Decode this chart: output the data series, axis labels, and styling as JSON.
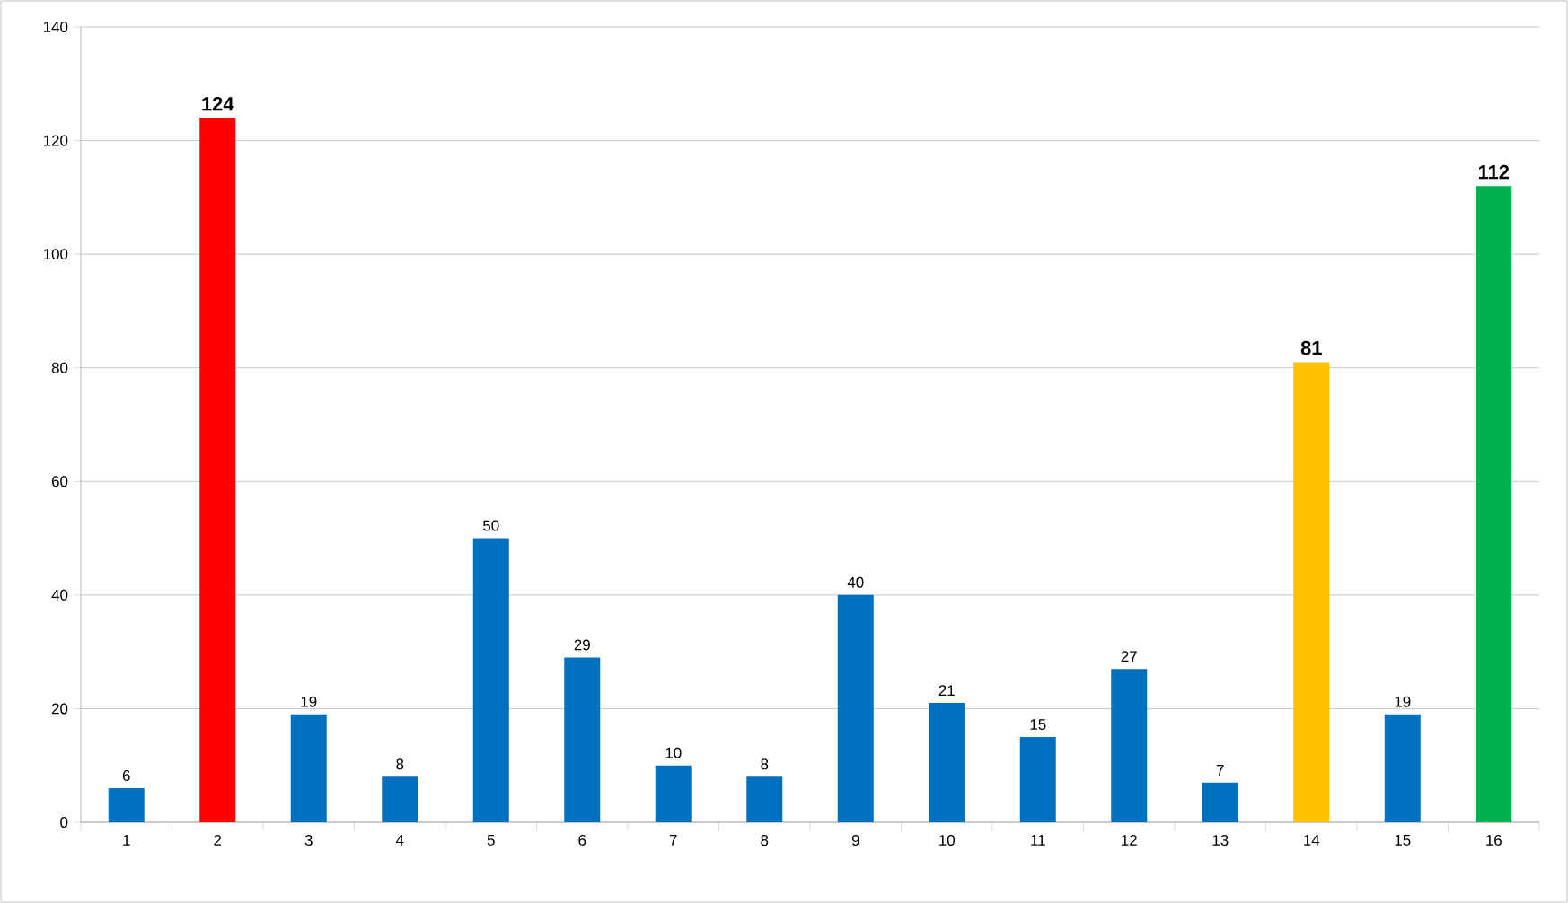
{
  "chart_data": {
    "type": "bar",
    "categories": [
      "1",
      "2",
      "3",
      "4",
      "5",
      "6",
      "7",
      "8",
      "9",
      "10",
      "11",
      "12",
      "13",
      "14",
      "15",
      "16"
    ],
    "values": [
      6,
      124,
      19,
      8,
      50,
      29,
      10,
      8,
      40,
      21,
      15,
      27,
      7,
      81,
      19,
      112
    ],
    "colors": [
      "#0070c0",
      "#ff0000",
      "#0070c0",
      "#0070c0",
      "#0070c0",
      "#0070c0",
      "#0070c0",
      "#0070c0",
      "#0070c0",
      "#0070c0",
      "#0070c0",
      "#0070c0",
      "#0070c0",
      "#ffc000",
      "#0070c0",
      "#00b050"
    ],
    "ylim": [
      0,
      140
    ],
    "yticks": [
      0,
      20,
      40,
      60,
      80,
      100,
      120,
      140
    ],
    "grid": "y",
    "data_labels": true
  }
}
